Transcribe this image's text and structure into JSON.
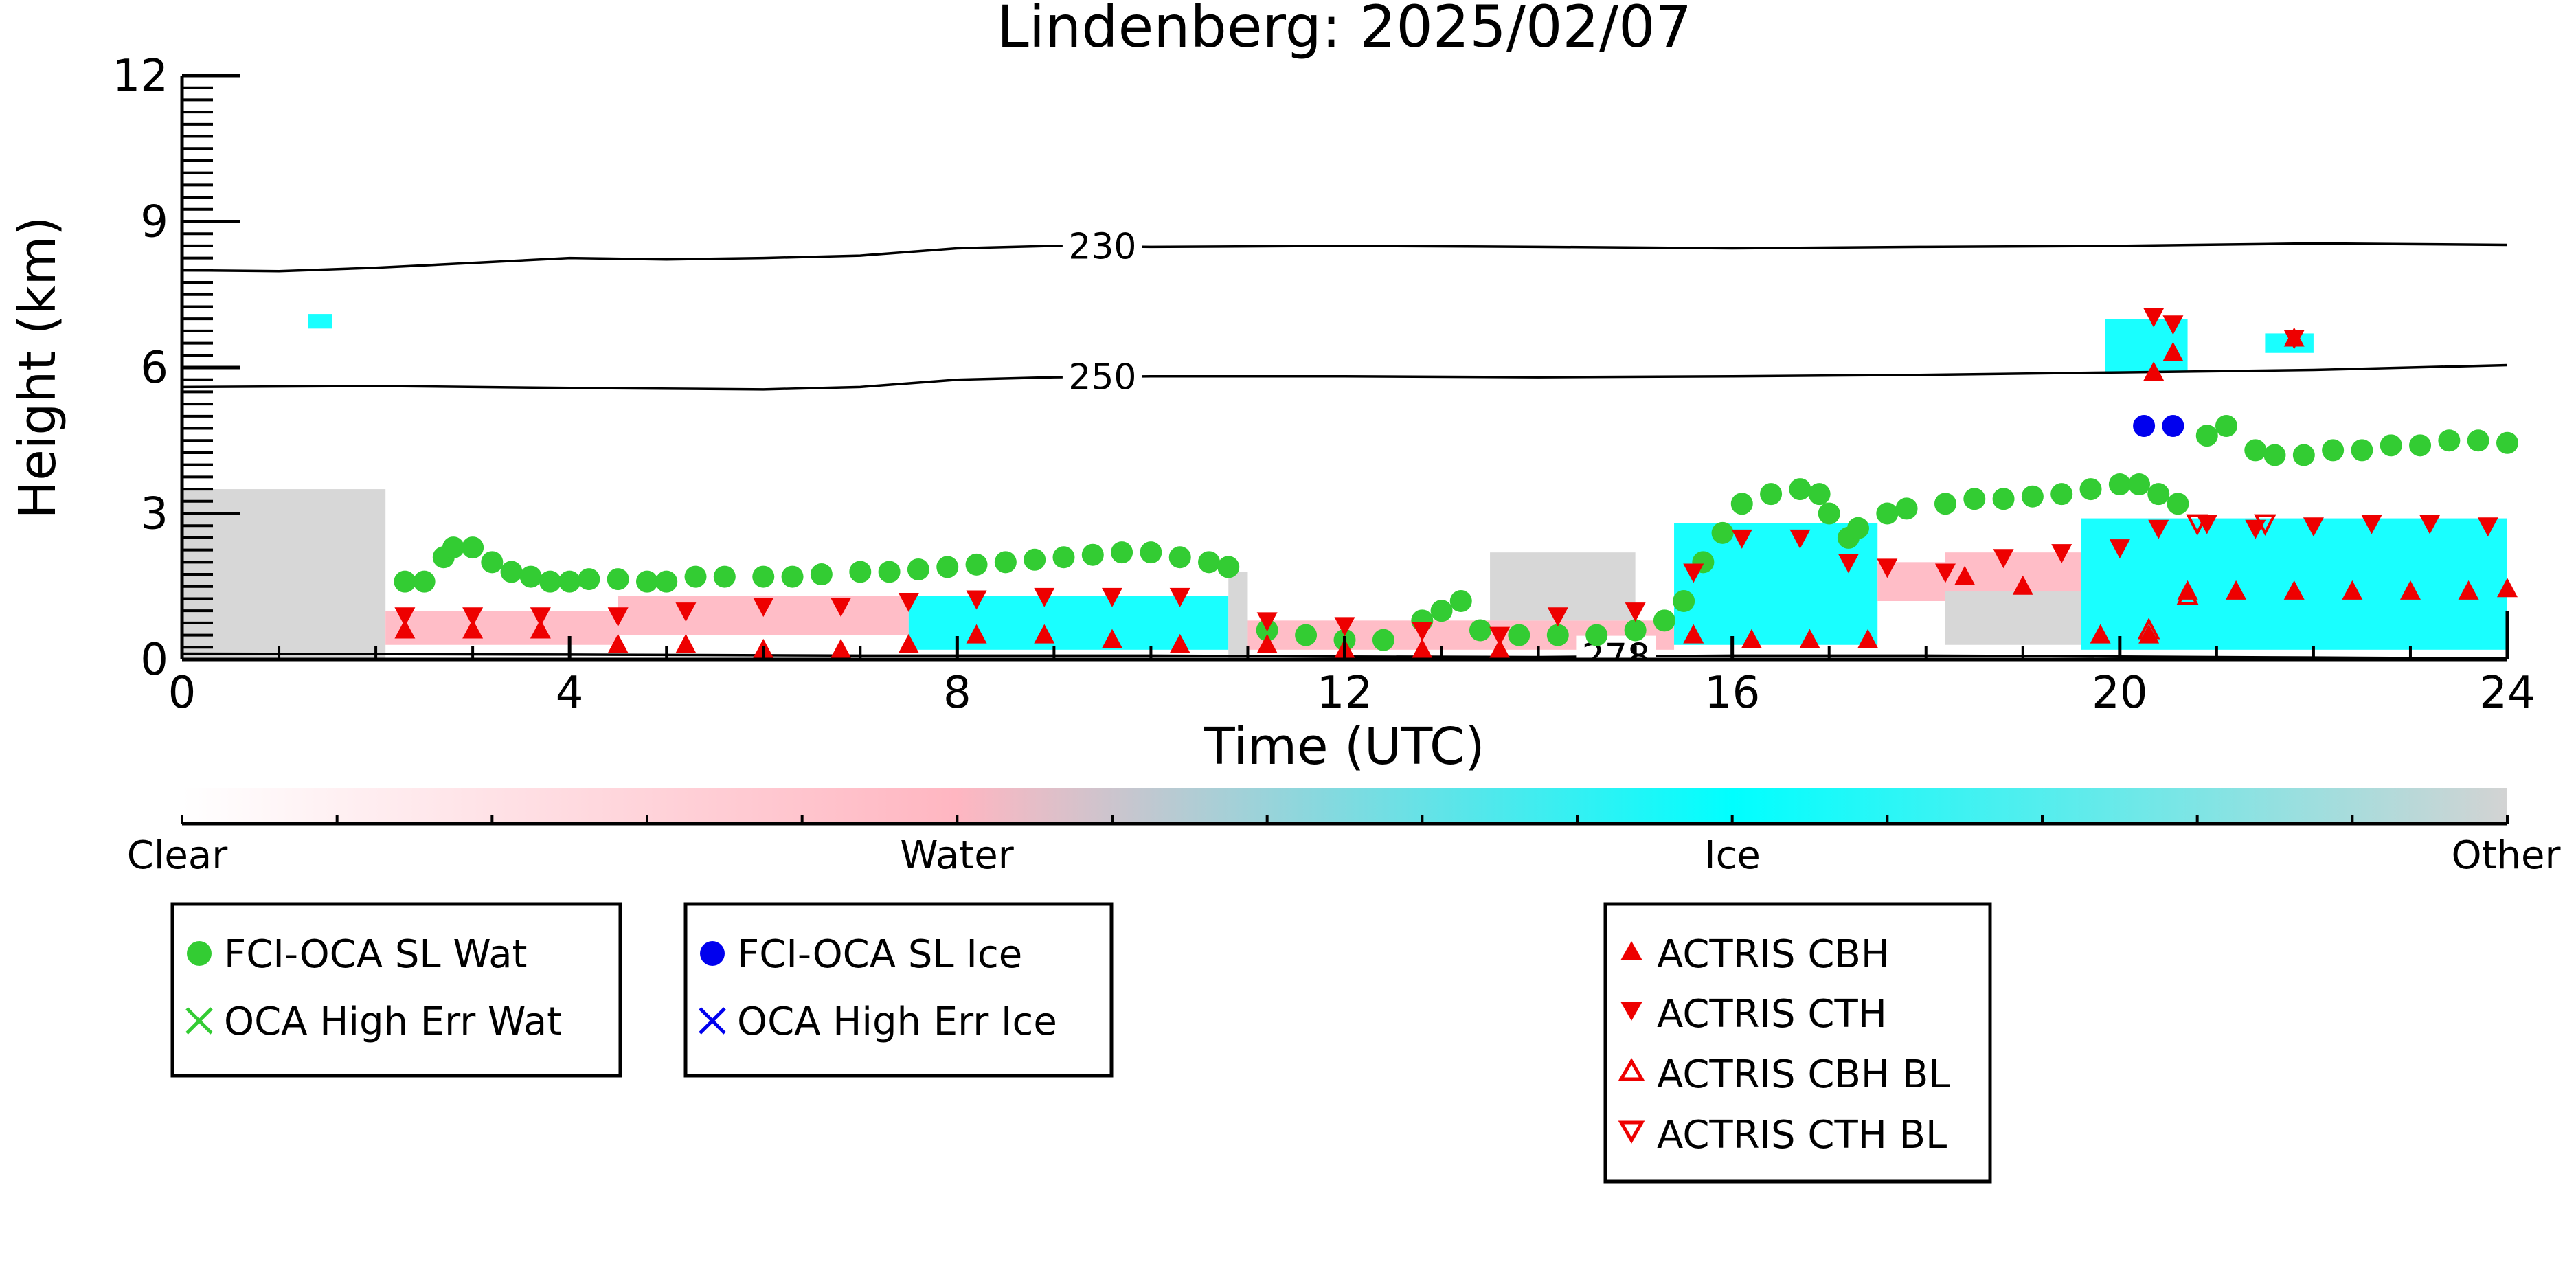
{
  "chart_data": {
    "type": "scatter",
    "title": "Lindenberg: 2025/02/07",
    "xlabel": "Time (UTC)",
    "ylabel": "Height (km)",
    "xlim": [
      0,
      24
    ],
    "ylim": [
      0,
      12
    ],
    "x_ticks": [
      0,
      4,
      8,
      12,
      16,
      20,
      24
    ],
    "x_tick_labels": [
      "0",
      "4",
      "8",
      "12",
      "16",
      "20",
      "24"
    ],
    "y_ticks": [
      0,
      3,
      6,
      9,
      12
    ],
    "y_tick_labels": [
      "0",
      "3",
      "6",
      "9",
      "12"
    ],
    "grid": false,
    "colors": {
      "fci_wat": "#33cc33",
      "fci_ice": "#0000ee",
      "actris": "#ee0000",
      "clear": "#ffffff",
      "water": "#ffb6c1",
      "ice": "#00ffff",
      "other": "#d3d3d3",
      "contour": "#000000"
    },
    "contours": [
      {
        "label": "230",
        "label_x": 9.5,
        "points": [
          [
            0,
            8.0
          ],
          [
            1,
            7.98
          ],
          [
            2,
            8.05
          ],
          [
            3,
            8.15
          ],
          [
            4,
            8.25
          ],
          [
            5,
            8.22
          ],
          [
            6,
            8.25
          ],
          [
            7,
            8.3
          ],
          [
            8,
            8.45
          ],
          [
            9,
            8.5
          ],
          [
            10,
            8.48
          ],
          [
            12,
            8.5
          ],
          [
            14,
            8.48
          ],
          [
            16,
            8.45
          ],
          [
            18,
            8.48
          ],
          [
            20,
            8.5
          ],
          [
            22,
            8.55
          ],
          [
            24,
            8.52
          ]
        ]
      },
      {
        "label": "250",
        "label_x": 9.5,
        "points": [
          [
            0,
            5.6
          ],
          [
            2,
            5.62
          ],
          [
            4,
            5.58
          ],
          [
            6,
            5.55
          ],
          [
            7,
            5.6
          ],
          [
            8,
            5.75
          ],
          [
            9,
            5.8
          ],
          [
            10,
            5.82
          ],
          [
            12,
            5.82
          ],
          [
            14,
            5.8
          ],
          [
            16,
            5.82
          ],
          [
            18,
            5.85
          ],
          [
            20,
            5.9
          ],
          [
            22,
            5.95
          ],
          [
            24,
            6.05
          ]
        ]
      },
      {
        "label": "278",
        "label_x": 14.8,
        "points": [
          [
            0,
            0.12
          ],
          [
            4,
            0.1
          ],
          [
            7,
            0.08
          ],
          [
            10,
            0.08
          ],
          [
            12,
            0.06
          ],
          [
            14,
            0.05
          ],
          [
            16,
            0.08
          ],
          [
            18,
            0.08
          ],
          [
            20,
            0.06
          ],
          [
            22,
            0.04
          ],
          [
            24,
            0.02
          ]
        ]
      }
    ],
    "phase_regions": [
      {
        "phase": "Other",
        "x0": 0.0,
        "x1": 2.1,
        "y0": 0.0,
        "y1": 3.5
      },
      {
        "phase": "Water",
        "x0": 2.1,
        "x1": 4.5,
        "y0": 0.3,
        "y1": 1.0
      },
      {
        "phase": "Water",
        "x0": 4.5,
        "x1": 7.5,
        "y0": 0.5,
        "y1": 1.3
      },
      {
        "phase": "Ice",
        "x0": 7.5,
        "x1": 10.8,
        "y0": 0.2,
        "y1": 1.3
      },
      {
        "phase": "Other",
        "x0": 10.8,
        "x1": 11.0,
        "y0": 0.0,
        "y1": 1.8
      },
      {
        "phase": "Water",
        "x0": 11.0,
        "x1": 15.4,
        "y0": 0.2,
        "y1": 0.8
      },
      {
        "phase": "Other",
        "x0": 13.5,
        "x1": 15.0,
        "y0": 0.8,
        "y1": 2.2
      },
      {
        "phase": "Ice",
        "x0": 15.4,
        "x1": 17.5,
        "y0": 0.3,
        "y1": 2.8
      },
      {
        "phase": "Water",
        "x0": 17.5,
        "x1": 18.2,
        "y0": 1.2,
        "y1": 2.0
      },
      {
        "phase": "Other",
        "x0": 18.2,
        "x1": 19.6,
        "y0": 0.3,
        "y1": 1.4
      },
      {
        "phase": "Water",
        "x0": 18.2,
        "x1": 19.6,
        "y0": 1.4,
        "y1": 2.2
      },
      {
        "phase": "Ice",
        "x0": 19.6,
        "x1": 24.0,
        "y0": 0.2,
        "y1": 2.9
      },
      {
        "phase": "Ice",
        "x0": 19.85,
        "x1": 20.7,
        "y0": 5.9,
        "y1": 7.0
      },
      {
        "phase": "Ice",
        "x0": 21.5,
        "x1": 22.0,
        "y0": 6.3,
        "y1": 6.7
      },
      {
        "phase": "Ice",
        "x0": 1.3,
        "x1": 1.55,
        "y0": 6.8,
        "y1": 7.1
      }
    ],
    "series": [
      {
        "name": "FCI-OCA SL Wat",
        "marker": "circle",
        "points": [
          [
            2.3,
            1.6
          ],
          [
            2.5,
            1.6
          ],
          [
            2.7,
            2.1
          ],
          [
            2.8,
            2.3
          ],
          [
            3.0,
            2.3
          ],
          [
            3.2,
            2.0
          ],
          [
            3.4,
            1.8
          ],
          [
            3.6,
            1.7
          ],
          [
            3.8,
            1.6
          ],
          [
            4.0,
            1.6
          ],
          [
            4.2,
            1.65
          ],
          [
            4.5,
            1.65
          ],
          [
            4.8,
            1.6
          ],
          [
            5.0,
            1.6
          ],
          [
            5.3,
            1.7
          ],
          [
            5.6,
            1.7
          ],
          [
            6.0,
            1.7
          ],
          [
            6.3,
            1.7
          ],
          [
            6.6,
            1.75
          ],
          [
            7.0,
            1.8
          ],
          [
            7.3,
            1.8
          ],
          [
            7.6,
            1.85
          ],
          [
            7.9,
            1.9
          ],
          [
            8.2,
            1.95
          ],
          [
            8.5,
            2.0
          ],
          [
            8.8,
            2.05
          ],
          [
            9.1,
            2.1
          ],
          [
            9.4,
            2.15
          ],
          [
            9.7,
            2.2
          ],
          [
            10.0,
            2.2
          ],
          [
            10.3,
            2.1
          ],
          [
            10.6,
            2.0
          ],
          [
            10.8,
            1.9
          ],
          [
            11.2,
            0.6
          ],
          [
            11.6,
            0.5
          ],
          [
            12.0,
            0.4
          ],
          [
            12.4,
            0.4
          ],
          [
            12.8,
            0.8
          ],
          [
            13.0,
            1.0
          ],
          [
            13.2,
            1.2
          ],
          [
            13.4,
            0.6
          ],
          [
            13.8,
            0.5
          ],
          [
            14.2,
            0.5
          ],
          [
            14.6,
            0.5
          ],
          [
            15.0,
            0.6
          ],
          [
            15.3,
            0.8
          ],
          [
            15.5,
            1.2
          ],
          [
            15.7,
            2.0
          ],
          [
            15.9,
            2.6
          ],
          [
            16.1,
            3.2
          ],
          [
            16.4,
            3.4
          ],
          [
            16.7,
            3.5
          ],
          [
            16.9,
            3.4
          ],
          [
            17.0,
            3.0
          ],
          [
            17.2,
            2.5
          ],
          [
            17.3,
            2.7
          ],
          [
            17.6,
            3.0
          ],
          [
            17.8,
            3.1
          ],
          [
            18.2,
            3.2
          ],
          [
            18.5,
            3.3
          ],
          [
            18.8,
            3.3
          ],
          [
            19.1,
            3.35
          ],
          [
            19.4,
            3.4
          ],
          [
            19.7,
            3.5
          ],
          [
            20.0,
            3.6
          ],
          [
            20.2,
            3.6
          ],
          [
            20.4,
            3.4
          ],
          [
            20.6,
            3.2
          ],
          [
            20.9,
            4.6
          ],
          [
            21.1,
            4.8
          ],
          [
            21.4,
            4.3
          ],
          [
            21.6,
            4.2
          ],
          [
            21.9,
            4.2
          ],
          [
            22.2,
            4.3
          ],
          [
            22.5,
            4.3
          ],
          [
            22.8,
            4.4
          ],
          [
            23.1,
            4.4
          ],
          [
            23.4,
            4.5
          ],
          [
            23.7,
            4.5
          ],
          [
            24.0,
            4.45
          ]
        ]
      },
      {
        "name": "OCA High Err Wat",
        "marker": "x",
        "points": []
      },
      {
        "name": "FCI-OCA SL Ice",
        "marker": "circle",
        "points": [
          [
            20.25,
            4.8
          ],
          [
            20.55,
            4.8
          ]
        ]
      },
      {
        "name": "OCA High Err Ice",
        "marker": "x",
        "points": []
      },
      {
        "name": "ACTRIS CBH",
        "marker": "triangle-up",
        "points": [
          [
            2.3,
            0.6
          ],
          [
            3.0,
            0.6
          ],
          [
            3.7,
            0.6
          ],
          [
            4.5,
            0.3
          ],
          [
            5.2,
            0.3
          ],
          [
            6.0,
            0.2
          ],
          [
            6.8,
            0.2
          ],
          [
            7.5,
            0.3
          ],
          [
            8.2,
            0.5
          ],
          [
            8.9,
            0.5
          ],
          [
            9.6,
            0.4
          ],
          [
            10.3,
            0.3
          ],
          [
            11.2,
            0.3
          ],
          [
            12.0,
            0.2
          ],
          [
            12.8,
            0.2
          ],
          [
            13.6,
            0.2
          ],
          [
            15.6,
            0.5
          ],
          [
            16.2,
            0.4
          ],
          [
            16.8,
            0.4
          ],
          [
            17.4,
            0.4
          ],
          [
            18.4,
            1.7
          ],
          [
            19.0,
            1.5
          ],
          [
            19.8,
            0.5
          ],
          [
            20.3,
            0.5
          ],
          [
            20.7,
            1.4
          ],
          [
            21.2,
            1.4
          ],
          [
            21.8,
            1.4
          ],
          [
            22.4,
            1.4
          ],
          [
            23.0,
            1.4
          ],
          [
            23.6,
            1.4
          ],
          [
            24.0,
            1.45
          ],
          [
            20.35,
            5.9
          ],
          [
            20.55,
            6.3
          ],
          [
            21.8,
            6.6
          ]
        ]
      },
      {
        "name": "ACTRIS CTH",
        "marker": "triangle-down",
        "points": [
          [
            2.3,
            0.9
          ],
          [
            3.0,
            0.9
          ],
          [
            3.7,
            0.9
          ],
          [
            4.5,
            0.9
          ],
          [
            5.2,
            1.0
          ],
          [
            6.0,
            1.1
          ],
          [
            6.8,
            1.1
          ],
          [
            7.5,
            1.2
          ],
          [
            8.2,
            1.25
          ],
          [
            8.9,
            1.3
          ],
          [
            9.6,
            1.3
          ],
          [
            10.3,
            1.3
          ],
          [
            11.2,
            0.8
          ],
          [
            12.0,
            0.7
          ],
          [
            12.8,
            0.6
          ],
          [
            13.6,
            0.5
          ],
          [
            14.2,
            0.9
          ],
          [
            15.0,
            1.0
          ],
          [
            15.6,
            1.8
          ],
          [
            16.1,
            2.5
          ],
          [
            16.7,
            2.5
          ],
          [
            17.2,
            2.0
          ],
          [
            17.6,
            1.9
          ],
          [
            18.2,
            1.8
          ],
          [
            18.8,
            2.1
          ],
          [
            19.4,
            2.2
          ],
          [
            20.0,
            2.3
          ],
          [
            20.4,
            2.7
          ],
          [
            20.9,
            2.8
          ],
          [
            21.4,
            2.7
          ],
          [
            22.0,
            2.75
          ],
          [
            22.6,
            2.8
          ],
          [
            23.2,
            2.8
          ],
          [
            23.8,
            2.75
          ],
          [
            20.35,
            7.05
          ],
          [
            20.55,
            6.9
          ],
          [
            21.8,
            6.6
          ]
        ]
      },
      {
        "name": "ACTRIS CBH BL",
        "marker": "triangle-up-open",
        "points": [
          [
            20.3,
            0.6
          ],
          [
            20.7,
            1.3
          ]
        ]
      },
      {
        "name": "ACTRIS CTH BL",
        "marker": "triangle-down-open",
        "points": [
          [
            20.8,
            2.8
          ],
          [
            21.5,
            2.8
          ]
        ]
      }
    ],
    "colorbar": {
      "labels": [
        "Clear",
        "Water",
        "Ice",
        "Other"
      ],
      "stops": [
        "#ffffff",
        "#ffb6c1",
        "#00ffff",
        "#d3d3d3"
      ]
    },
    "legends": [
      {
        "entries": [
          "FCI-OCA SL Wat",
          "OCA High Err Wat"
        ]
      },
      {
        "entries": [
          "FCI-OCA SL Ice",
          "OCA High Err Ice"
        ]
      },
      {
        "entries": [
          "ACTRIS CBH",
          "ACTRIS CTH",
          "ACTRIS CBH BL",
          "ACTRIS CTH BL"
        ]
      }
    ]
  }
}
